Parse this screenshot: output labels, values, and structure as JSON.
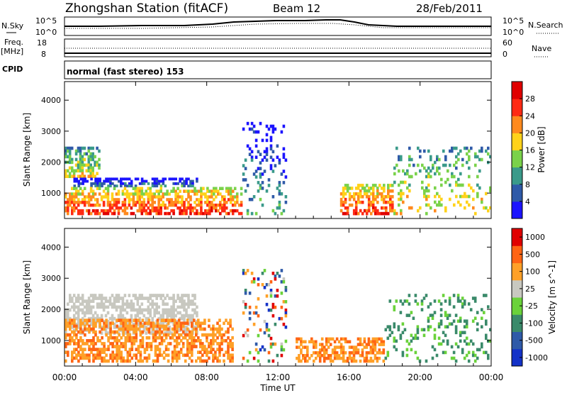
{
  "header": {
    "title": "Zhongshan Station (fitACF)",
    "beam": "Beam 12",
    "date": "28/Feb/2011"
  },
  "strips": {
    "nsky": {
      "label": "N.Sky",
      "left_ticks": [
        "10^5",
        "10^0"
      ],
      "right_ticks": [
        "10^5",
        "10^0"
      ],
      "right_label": "N.Search"
    },
    "freq": {
      "label_top": "Freq.",
      "label_unit": "[MHz]",
      "left_ticks": [
        "18",
        "8"
      ],
      "right_ticks": [
        "60",
        "0"
      ],
      "right_label": "Nave"
    },
    "cpid": {
      "label": "CPID",
      "text": "normal (fast stereo) 153"
    }
  },
  "chart_data": [
    {
      "type": "heatmap",
      "quantity": "power",
      "ylabel": "Slant Range [km]",
      "yticks": [
        1000,
        2000,
        3000,
        4000
      ],
      "ylim": [
        180,
        4600
      ],
      "xlim_hours": [
        0,
        24
      ],
      "colorbar": {
        "label": "Power [dB]",
        "ticks": [
          "4",
          "8",
          "12",
          "16",
          "20",
          "24",
          "28"
        ],
        "colors": [
          "#1c14ff",
          "#2f5aa8",
          "#3a9a8a",
          "#7ad24a",
          "#ffd21a",
          "#ff8a1e",
          "#ff2a14",
          "#e00000"
        ]
      },
      "echo_regions": [
        {
          "t": [
            0.0,
            2.0
          ],
          "range_km": [
            1500,
            2500
          ],
          "level": "mid"
        },
        {
          "t": [
            0.5,
            7.5
          ],
          "range_km": [
            1200,
            1500
          ],
          "level": "low"
        },
        {
          "t": [
            0.0,
            10.0
          ],
          "range_km": [
            300,
            1200
          ],
          "level": "high"
        },
        {
          "t": [
            10.0,
            12.5
          ],
          "range_km": [
            300,
            3300
          ],
          "level": "low"
        },
        {
          "t": [
            15.5,
            18.5
          ],
          "range_km": [
            300,
            1300
          ],
          "level": "high"
        },
        {
          "t": [
            18.5,
            24.0
          ],
          "range_km": [
            300,
            2500
          ],
          "level": "mid"
        }
      ]
    },
    {
      "type": "heatmap",
      "quantity": "velocity",
      "ylabel": "Slant Range [km]",
      "yticks": [
        1000,
        2000,
        3000,
        4000
      ],
      "ylim": [
        180,
        4600
      ],
      "xlim_hours": [
        0,
        24
      ],
      "xticks": [
        "00:00",
        "04:00",
        "08:00",
        "12:00",
        "16:00",
        "20:00",
        "00:00"
      ],
      "xlabel": "Time UT",
      "colorbar": {
        "label": "Velocity [m s^-1]",
        "ticks": [
          "1000",
          "500",
          "100",
          "25",
          "-25",
          "-100",
          "-500",
          "-1000"
        ],
        "colors": [
          "#1432c8",
          "#2f5aa8",
          "#3a8a6a",
          "#6ad23a",
          "#c8c8c0",
          "#ffa028",
          "#ff6414",
          "#e00000"
        ]
      },
      "echo_regions": [
        {
          "t": [
            0.0,
            7.5
          ],
          "range_km": [
            1200,
            2500
          ],
          "velocity": "ground (grey)"
        },
        {
          "t": [
            0.0,
            9.5
          ],
          "range_km": [
            300,
            1700
          ],
          "velocity": "-100 to -500"
        },
        {
          "t": [
            10.0,
            12.5
          ],
          "range_km": [
            300,
            3300
          ],
          "velocity": "mixed"
        },
        {
          "t": [
            13.0,
            18.0
          ],
          "range_km": [
            300,
            1100
          ],
          "velocity": "-100 to -500"
        },
        {
          "t": [
            18.0,
            24.0
          ],
          "range_km": [
            300,
            2500
          ],
          "velocity": "100 to 500"
        }
      ]
    }
  ]
}
